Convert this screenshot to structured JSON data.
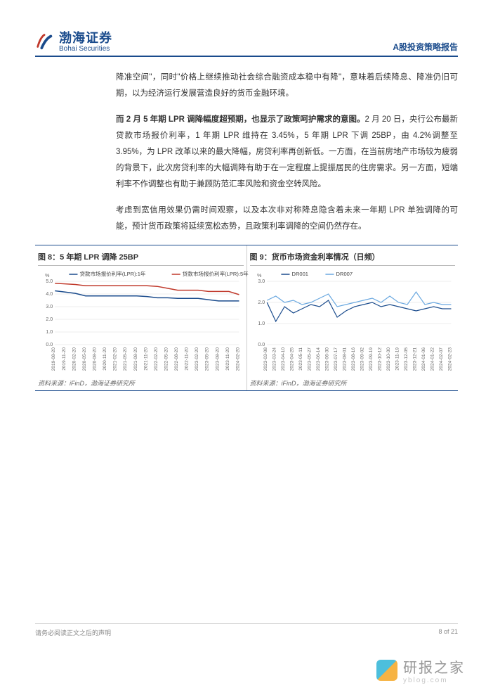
{
  "header": {
    "company_cn": "渤海证券",
    "company_en": "Bohai Securities",
    "doc_title": "A股投资策略报告"
  },
  "paragraphs": {
    "p1": "降准空间\"，同时\"价格上继续推动社会综合融资成本稳中有降\"，意味着后续降息、降准仍旧可期，以为经济运行发展营造良好的货币金融环境。",
    "p2_bold": "而 2 月 5 年期 LPR 调降幅度超预期，也显示了政策呵护需求的意图。",
    "p2_rest": "2 月 20 日，央行公布最新贷款市场报价利率，1 年期 LPR 维持在 3.45%，5 年期 LPR 下调 25BP，由 4.2%调整至 3.95%，为 LPR 改革以来的最大降幅，房贷利率再创新低。一方面，在当前房地产市场较为疲弱的背景下，此次房贷利率的大幅调降有助于在一定程度上提振居民的住房需求。另一方面，短端利率不作调整也有助于兼顾防范汇率风险和资金空转风险。",
    "p3": "考虑到宽信用效果仍需时间观察，以及本次非对称降息隐含着未来一年期 LPR 单独调降的可能，预计货币政策将延续宽松态势，且政策利率调降的空间仍然存在。"
  },
  "chart8": {
    "title": "图 8：5 年期 LPR 调降 25BP",
    "type": "line",
    "legend": [
      "贷款市场报价利率(LPR):1年",
      "贷款市场报价利率(LPR):5年"
    ],
    "legend_colors": [
      "#1a4b8c",
      "#c0392b"
    ],
    "y_unit": "%",
    "ylim": [
      0,
      5
    ],
    "ytick_step": 1,
    "x_labels": [
      "2019-08-20",
      "2019-11-20",
      "2020-02-20",
      "2020-05-20",
      "2020-08-20",
      "2020-11-20",
      "2021-02-20",
      "2021-05-20",
      "2021-08-20",
      "2021-11-20",
      "2022-02-20",
      "2022-05-20",
      "2022-08-20",
      "2022-11-20",
      "2023-02-20",
      "2023-05-20",
      "2023-08-20",
      "2023-11-20",
      "2024-02-20"
    ],
    "series1": [
      4.25,
      4.15,
      4.05,
      3.85,
      3.85,
      3.85,
      3.85,
      3.85,
      3.85,
      3.8,
      3.7,
      3.7,
      3.65,
      3.65,
      3.65,
      3.55,
      3.45,
      3.45,
      3.45
    ],
    "series2": [
      4.85,
      4.8,
      4.75,
      4.65,
      4.65,
      4.65,
      4.65,
      4.65,
      4.65,
      4.65,
      4.6,
      4.45,
      4.3,
      4.3,
      4.3,
      4.2,
      4.2,
      4.2,
      3.95
    ],
    "grid_color": "#dddddd",
    "background_color": "#ffffff",
    "line_width": 1.5,
    "source": "资料来源：iFinD，渤海证券研究所"
  },
  "chart9": {
    "title": "图 9：货币市场资金利率情况（日频）",
    "type": "line",
    "legend": [
      "DR001",
      "DR007"
    ],
    "legend_colors": [
      "#1a4b8c",
      "#6aa8e0"
    ],
    "y_unit": "%",
    "ylim": [
      0,
      3
    ],
    "ytick_step": 1,
    "x_labels": [
      "2023-03-08",
      "2023-03-24",
      "2023-04-10",
      "2023-04-25",
      "2023-05-11",
      "2023-05-27",
      "2023-06-14",
      "2023-06-30",
      "2023-07-17",
      "2023-08-01",
      "2023-08-16",
      "2023-09-02",
      "2023-09-19",
      "2023-10-12",
      "2023-10-30",
      "2023-11-19",
      "2023-12-05",
      "2023-12-21",
      "2024-01-06",
      "2024-01-22",
      "2024-02-07",
      "2024-02-23"
    ],
    "series1": [
      2.0,
      1.1,
      1.8,
      1.5,
      1.7,
      1.9,
      1.8,
      2.1,
      1.3,
      1.6,
      1.8,
      1.9,
      2.0,
      1.8,
      1.9,
      1.8,
      1.7,
      1.6,
      1.7,
      1.8,
      1.7,
      1.7
    ],
    "series2": [
      2.1,
      2.3,
      2.0,
      2.1,
      1.9,
      2.0,
      2.2,
      2.4,
      1.8,
      1.9,
      2.0,
      2.1,
      2.2,
      2.0,
      2.3,
      2.0,
      1.9,
      2.5,
      1.9,
      2.0,
      1.9,
      1.9
    ],
    "grid_color": "#dddddd",
    "background_color": "#ffffff",
    "line_width": 1.2,
    "source": "资料来源：iFinD，渤海证券研究所"
  },
  "footer": {
    "disclaimer": "请务必阅读正文之后的声明",
    "page": "8 of 21"
  },
  "watermark": {
    "text": "研报之家",
    "sub": "yblog.com"
  }
}
